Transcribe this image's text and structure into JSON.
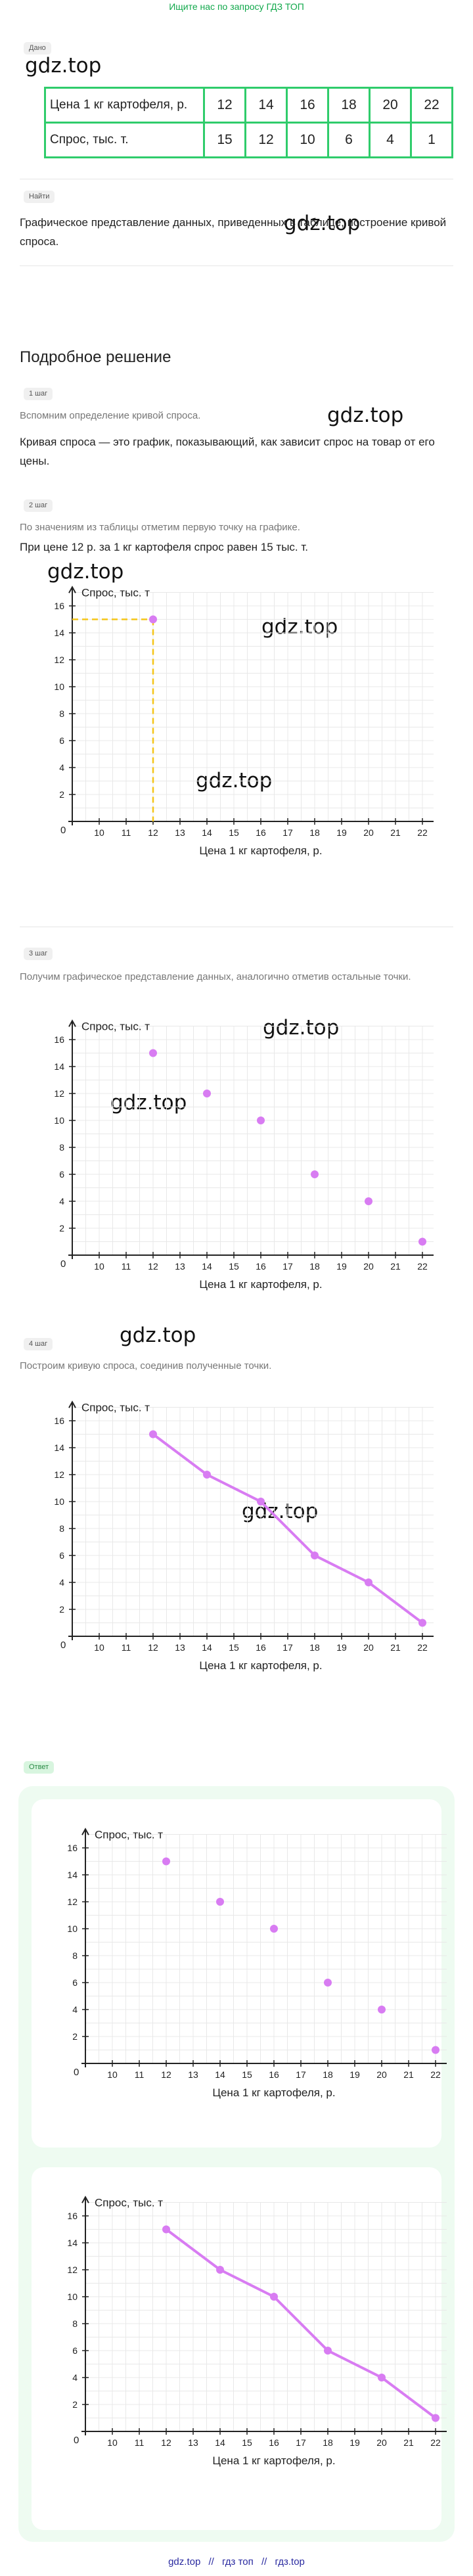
{
  "banner": "Ищите нас по запросу ГДЗ ТОП",
  "watermark": "gdz.top",
  "given": {
    "tag": "Дано",
    "row_price_label": "Цена 1 кг картофеля, р.",
    "row_demand_label": "Спрос, тыс. т.",
    "prices": [
      "12",
      "14",
      "16",
      "18",
      "20",
      "22"
    ],
    "demand": [
      "15",
      "12",
      "10",
      "6",
      "4",
      "1"
    ]
  },
  "find": {
    "tag": "Найти",
    "text": "Графическое представление данных, приведенных в таблице; построение кривой спроса."
  },
  "solution_title": "Подробное решение",
  "step1": {
    "tag": "1 шаг",
    "hint": "Вспомним определение кривой спроса.",
    "text": "Кривая спроса — это график, показывающий, как зависит спрос на товар от его цены."
  },
  "step2": {
    "tag": "2 шаг",
    "hint": "По значениям из таблицы отметим первую точку на графике.",
    "text": "При цене 12 р. за 1 кг картофеля спрос равен 15 тыс. т."
  },
  "step3": {
    "tag": "3 шаг",
    "hint": "Получим графическое представление данных, аналогично отметив остальные точки."
  },
  "step4": {
    "tag": "4 шаг",
    "hint": "Построим кривую спроса, соединив полученные точки."
  },
  "answer": {
    "tag": "Ответ"
  },
  "footer": {
    "links": [
      "gdz.top",
      "//",
      "гдз топ",
      "//",
      "гдз.top"
    ]
  },
  "colors": {
    "accent": "#2fcc6b",
    "point": "#d87cf2",
    "line": "#d87cf2",
    "guide": "#f5c518"
  },
  "chart_data": [
    {
      "type": "scatter",
      "title": "",
      "xlabel": "Цена 1 кг картофеля, р.",
      "ylabel": "Спрос, тыс. т",
      "x_ticks": [
        10,
        11,
        12,
        13,
        14,
        15,
        16,
        17,
        18,
        19,
        20,
        21,
        22
      ],
      "y_ticks": [
        2,
        4,
        6,
        8,
        10,
        12,
        14,
        16
      ],
      "xlim": [
        9,
        23
      ],
      "ylim": [
        0,
        17
      ],
      "grid": true,
      "series": [
        {
          "x": [
            12
          ],
          "y": [
            15
          ],
          "style": "points"
        }
      ],
      "guide_lines": true
    },
    {
      "type": "scatter",
      "title": "",
      "xlabel": "Цена 1 кг картофеля, р.",
      "ylabel": "Спрос, тыс. т",
      "x_ticks": [
        10,
        11,
        12,
        13,
        14,
        15,
        16,
        17,
        18,
        19,
        20,
        21,
        22
      ],
      "y_ticks": [
        2,
        4,
        6,
        8,
        10,
        12,
        14,
        16
      ],
      "xlim": [
        9,
        23
      ],
      "ylim": [
        0,
        17
      ],
      "grid": true,
      "series": [
        {
          "x": [
            12,
            14,
            16,
            18,
            20,
            22
          ],
          "y": [
            15,
            12,
            10,
            6,
            4,
            1
          ],
          "style": "points"
        }
      ]
    },
    {
      "type": "line",
      "title": "",
      "xlabel": "Цена 1 кг картофеля, р.",
      "ylabel": "Спрос, тыс. т",
      "x_ticks": [
        10,
        11,
        12,
        13,
        14,
        15,
        16,
        17,
        18,
        19,
        20,
        21,
        22
      ],
      "y_ticks": [
        2,
        4,
        6,
        8,
        10,
        12,
        14,
        16
      ],
      "xlim": [
        9,
        23
      ],
      "ylim": [
        0,
        17
      ],
      "grid": true,
      "series": [
        {
          "x": [
            12,
            14,
            16,
            18,
            20,
            22
          ],
          "y": [
            15,
            12,
            10,
            6,
            4,
            1
          ],
          "style": "line"
        }
      ]
    },
    {
      "type": "scatter",
      "title": "",
      "xlabel": "Цена 1 кг картофеля, р.",
      "ylabel": "Спрос, тыс. т",
      "x_ticks": [
        10,
        11,
        12,
        13,
        14,
        15,
        16,
        17,
        18,
        19,
        20,
        21,
        22
      ],
      "y_ticks": [
        2,
        4,
        6,
        8,
        10,
        12,
        14,
        16
      ],
      "xlim": [
        9,
        23
      ],
      "ylim": [
        0,
        17
      ],
      "grid": true,
      "series": [
        {
          "x": [
            12,
            14,
            16,
            18,
            20,
            22
          ],
          "y": [
            15,
            12,
            10,
            6,
            4,
            1
          ],
          "style": "points"
        }
      ]
    },
    {
      "type": "line",
      "title": "",
      "xlabel": "Цена 1 кг картофеля, р.",
      "ylabel": "Спрос, тыс. т",
      "x_ticks": [
        10,
        11,
        12,
        13,
        14,
        15,
        16,
        17,
        18,
        19,
        20,
        21,
        22
      ],
      "y_ticks": [
        2,
        4,
        6,
        8,
        10,
        12,
        14,
        16
      ],
      "xlim": [
        9,
        23
      ],
      "ylim": [
        0,
        17
      ],
      "grid": true,
      "series": [
        {
          "x": [
            12,
            14,
            16,
            18,
            20,
            22
          ],
          "y": [
            15,
            12,
            10,
            6,
            4,
            1
          ],
          "style": "line"
        }
      ]
    }
  ]
}
